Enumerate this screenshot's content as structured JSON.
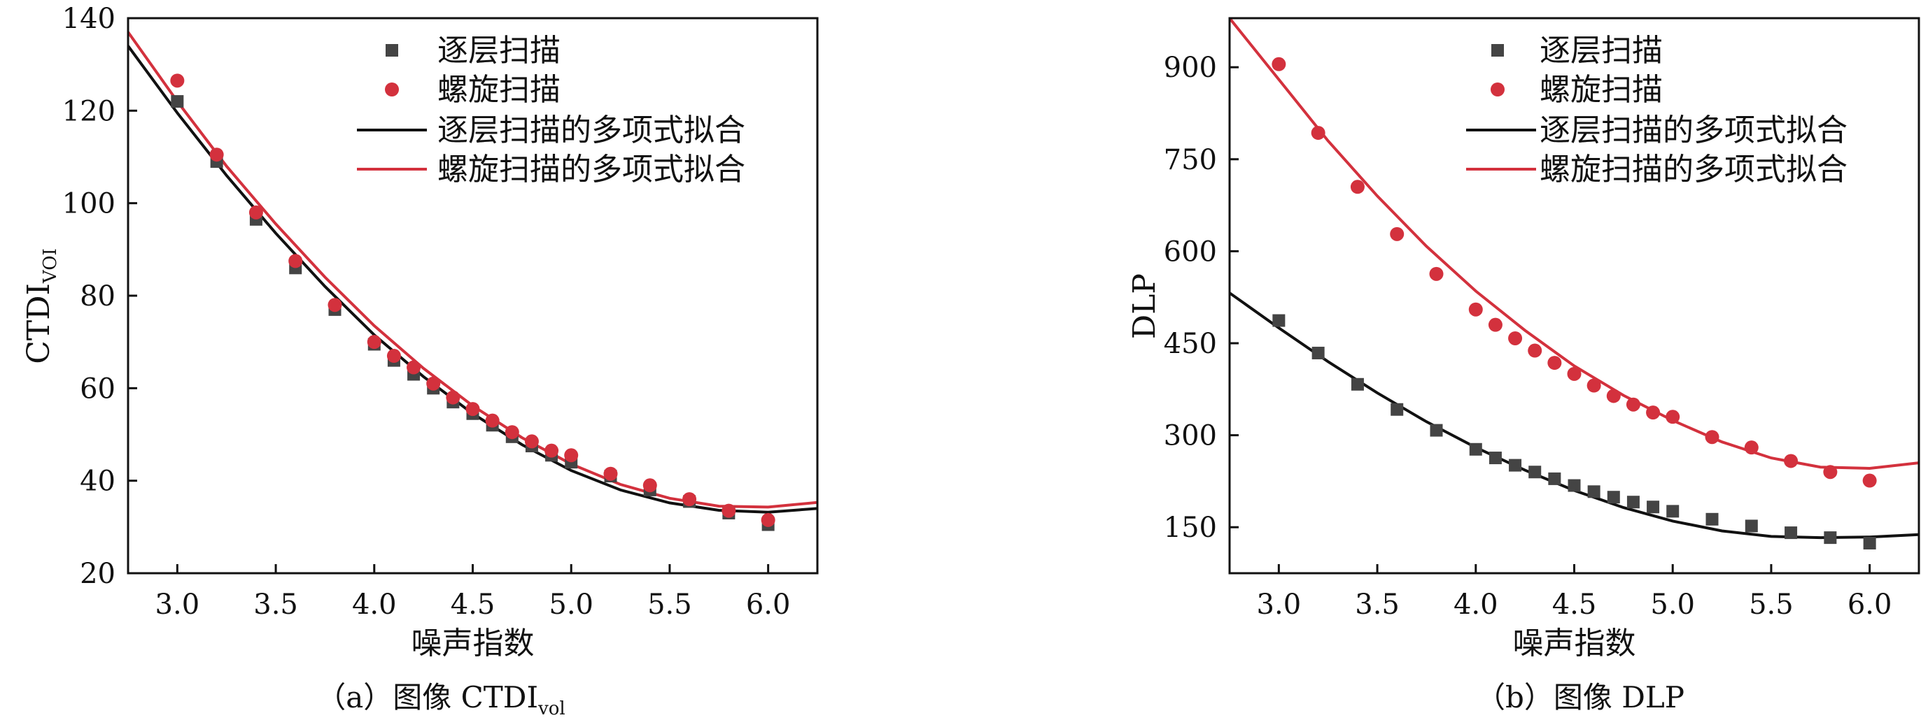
{
  "chart_data": [
    {
      "type": "scatter",
      "caption": {
        "prefix": "（a）图像 CTDI",
        "sub": "vol"
      },
      "xlabel": "噪声指数",
      "ylabel": {
        "main": "CTDI",
        "sub": "VOI"
      },
      "xlim": [
        2.75,
        6.25
      ],
      "ylim": [
        20,
        140
      ],
      "xticks": [
        "3.0",
        "3.5",
        "4.0",
        "4.5",
        "5.0",
        "5.5",
        "6.0"
      ],
      "yticks": [
        "20",
        "40",
        "60",
        "80",
        "100",
        "120",
        "140"
      ],
      "grid": false,
      "legend": "top-center",
      "x": [
        3.0,
        3.2,
        3.4,
        3.6,
        3.8,
        4.0,
        4.1,
        4.2,
        4.3,
        4.4,
        4.5,
        4.6,
        4.7,
        4.8,
        4.9,
        5.0,
        5.2,
        5.4,
        5.6,
        5.8,
        6.0
      ],
      "series": [
        {
          "name": "逐层扫描",
          "kind": "scatter",
          "marker": "square",
          "color": "#444444",
          "values": [
            122,
            109,
            96.5,
            86,
            77,
            69.5,
            66,
            63,
            60,
            57,
            54.5,
            52,
            49.5,
            47.5,
            45.5,
            44,
            41,
            38,
            35.5,
            33,
            30.5
          ]
        },
        {
          "name": "螺旋扫描",
          "kind": "scatter",
          "marker": "circle",
          "color": "#d3313d",
          "values": [
            126.5,
            110.5,
            98,
            87.5,
            78,
            70,
            67,
            64.5,
            61,
            58,
            55.5,
            53,
            50.5,
            48.5,
            46.5,
            45.5,
            41.5,
            39,
            36,
            33.5,
            31.5
          ]
        },
        {
          "name": "逐层扫描的多项式拟合",
          "kind": "line",
          "color": "#111111",
          "x": [
            2.75,
            3.0,
            3.25,
            3.5,
            3.75,
            4.0,
            4.25,
            4.5,
            4.75,
            5.0,
            5.25,
            5.5,
            5.75,
            6.0,
            6.25
          ],
          "values": [
            134,
            119.5,
            106,
            93.5,
            82,
            71.5,
            62.5,
            54.5,
            47.8,
            42.2,
            38,
            35.2,
            33.6,
            33.2,
            34
          ]
        },
        {
          "name": "螺旋扫描的多项式拟合",
          "kind": "line",
          "color": "#d3313d",
          "x": [
            2.75,
            3.0,
            3.25,
            3.5,
            3.75,
            4.0,
            4.25,
            4.5,
            4.75,
            5.0,
            5.25,
            5.5,
            5.75,
            6.0,
            6.25
          ],
          "values": [
            137,
            122,
            108,
            95.5,
            84,
            73.5,
            64.3,
            56.2,
            49.3,
            43.6,
            39.2,
            36.2,
            34.5,
            34.3,
            35.3
          ]
        }
      ]
    },
    {
      "type": "scatter",
      "caption": {
        "prefix": "（b）图像 DLP",
        "sub": ""
      },
      "xlabel": "噪声指数",
      "ylabel": {
        "main": "DLP",
        "sub": ""
      },
      "xlim": [
        2.75,
        6.25
      ],
      "ylim": [
        75,
        980
      ],
      "xticks": [
        "3.0",
        "3.5",
        "4.0",
        "4.5",
        "5.0",
        "5.5",
        "6.0"
      ],
      "yticks": [
        "150",
        "300",
        "450",
        "600",
        "750",
        "900"
      ],
      "grid": false,
      "legend": "top-center",
      "x": [
        3.0,
        3.2,
        3.4,
        3.6,
        3.8,
        4.0,
        4.1,
        4.2,
        4.3,
        4.4,
        4.5,
        4.6,
        4.7,
        4.8,
        4.9,
        5.0,
        5.2,
        5.4,
        5.6,
        5.8,
        6.0
      ],
      "series": [
        {
          "name": "逐层扫描",
          "kind": "scatter",
          "marker": "square",
          "color": "#444444",
          "values": [
            487,
            434,
            383,
            342,
            308,
            277,
            263,
            251,
            240,
            229,
            218,
            208,
            199,
            191,
            183,
            176,
            163,
            152,
            141,
            133,
            124
          ]
        },
        {
          "name": "螺旋扫描",
          "kind": "scatter",
          "marker": "circle",
          "color": "#d3313d",
          "values": [
            905,
            793,
            705,
            628,
            563,
            505,
            480,
            458,
            438,
            418,
            400,
            381,
            364,
            350,
            337,
            330,
            297,
            280,
            258,
            240,
            226
          ]
        },
        {
          "name": "逐层扫描的多项式拟合",
          "kind": "line",
          "color": "#111111",
          "x": [
            2.75,
            3.0,
            3.25,
            3.5,
            3.75,
            4.0,
            4.25,
            4.5,
            4.75,
            5.0,
            5.25,
            5.5,
            5.75,
            6.0,
            6.25
          ],
          "values": [
            532,
            475,
            420,
            369,
            322,
            280,
            243,
            210,
            182,
            160,
            144,
            135,
            133,
            134,
            138
          ]
        },
        {
          "name": "螺旋扫描的多项式拟合",
          "kind": "line",
          "color": "#d3313d",
          "x": [
            2.75,
            3.0,
            3.25,
            3.5,
            3.75,
            4.0,
            4.25,
            4.5,
            4.75,
            5.0,
            5.25,
            5.5,
            5.75,
            6.0,
            6.25
          ],
          "values": [
            980,
            880,
            780,
            690,
            608,
            535,
            471,
            413,
            365,
            324,
            289,
            263,
            248,
            246,
            255
          ]
        }
      ]
    }
  ]
}
